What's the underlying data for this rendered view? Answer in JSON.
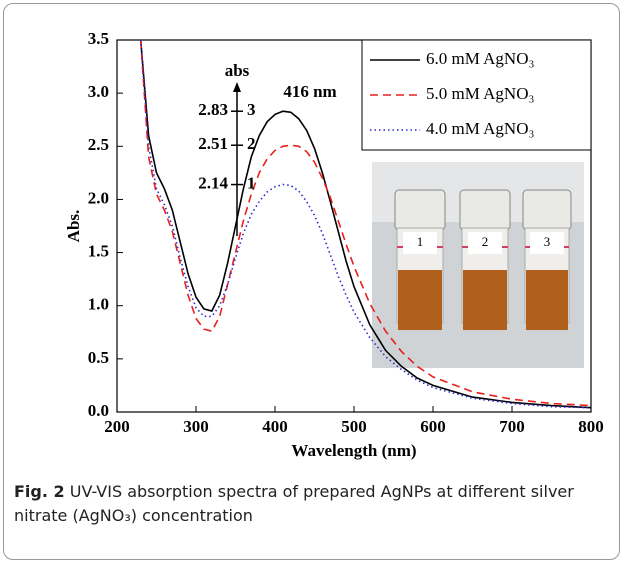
{
  "chart_data": {
    "type": "line",
    "x": [
      230,
      240,
      250,
      260,
      270,
      280,
      290,
      300,
      310,
      320,
      330,
      340,
      350,
      360,
      370,
      380,
      390,
      400,
      410,
      420,
      430,
      440,
      450,
      460,
      470,
      480,
      490,
      500,
      520,
      540,
      560,
      580,
      600,
      650,
      700,
      750,
      800
    ],
    "series": [
      {
        "name": "6.0 mM AgNO₃",
        "color": "#000000",
        "dash": "none",
        "values": [
          3.5,
          2.6,
          2.25,
          2.1,
          1.9,
          1.6,
          1.3,
          1.08,
          0.97,
          0.95,
          1.1,
          1.4,
          1.75,
          2.1,
          2.4,
          2.6,
          2.73,
          2.8,
          2.83,
          2.82,
          2.76,
          2.65,
          2.48,
          2.25,
          1.98,
          1.7,
          1.42,
          1.18,
          0.82,
          0.58,
          0.43,
          0.32,
          0.25,
          0.14,
          0.09,
          0.06,
          0.04
        ]
      },
      {
        "name": "5.0 mM AgNO₃",
        "color": "#e8201c",
        "dash": "8,5",
        "values": [
          3.5,
          2.4,
          2.05,
          1.9,
          1.7,
          1.4,
          1.1,
          0.88,
          0.78,
          0.76,
          0.9,
          1.2,
          1.5,
          1.8,
          2.05,
          2.25,
          2.38,
          2.46,
          2.5,
          2.51,
          2.5,
          2.45,
          2.35,
          2.2,
          2.02,
          1.8,
          1.58,
          1.37,
          1.02,
          0.76,
          0.57,
          0.43,
          0.33,
          0.19,
          0.12,
          0.08,
          0.06
        ]
      },
      {
        "name": "4.0 mM AgNO₃",
        "color": "#2a2ad0",
        "dash": "1.5,3",
        "values": [
          3.5,
          2.5,
          2.1,
          1.95,
          1.75,
          1.45,
          1.18,
          0.98,
          0.9,
          0.9,
          1.0,
          1.2,
          1.45,
          1.68,
          1.86,
          1.98,
          2.07,
          2.12,
          2.14,
          2.13,
          2.08,
          1.98,
          1.85,
          1.68,
          1.48,
          1.28,
          1.1,
          0.94,
          0.7,
          0.52,
          0.4,
          0.3,
          0.23,
          0.13,
          0.08,
          0.05,
          0.04
        ]
      }
    ],
    "xlabel": "Wavelength (nm)",
    "ylabel": "Abs.",
    "xlim": [
      200,
      800
    ],
    "xticks": [
      200,
      300,
      400,
      500,
      600,
      700,
      800
    ],
    "ylim": [
      0,
      3.5
    ],
    "yticks": [
      {
        "value": 0,
        "label": "0.0"
      },
      0.5,
      {
        "value": 1,
        "label": "1.0"
      },
      1.5,
      {
        "value": 2,
        "label": "2.0"
      },
      2.5,
      {
        "value": 3,
        "label": "3.0"
      },
      3.5
    ],
    "legend": "upper right",
    "peak_label": "416 nm",
    "inset_scale": {
      "title": "abs",
      "values": [
        2.14,
        2.51,
        2.83
      ],
      "labels": [
        "1",
        "2",
        "3"
      ]
    },
    "photo_labels": [
      "1",
      "2",
      "3"
    ]
  },
  "caption": {
    "label": "Fig. 2",
    "text": "UV-VIS absorption spectra of prepared AgNPs at different silver nitrate (AgNO₃) concentration"
  }
}
